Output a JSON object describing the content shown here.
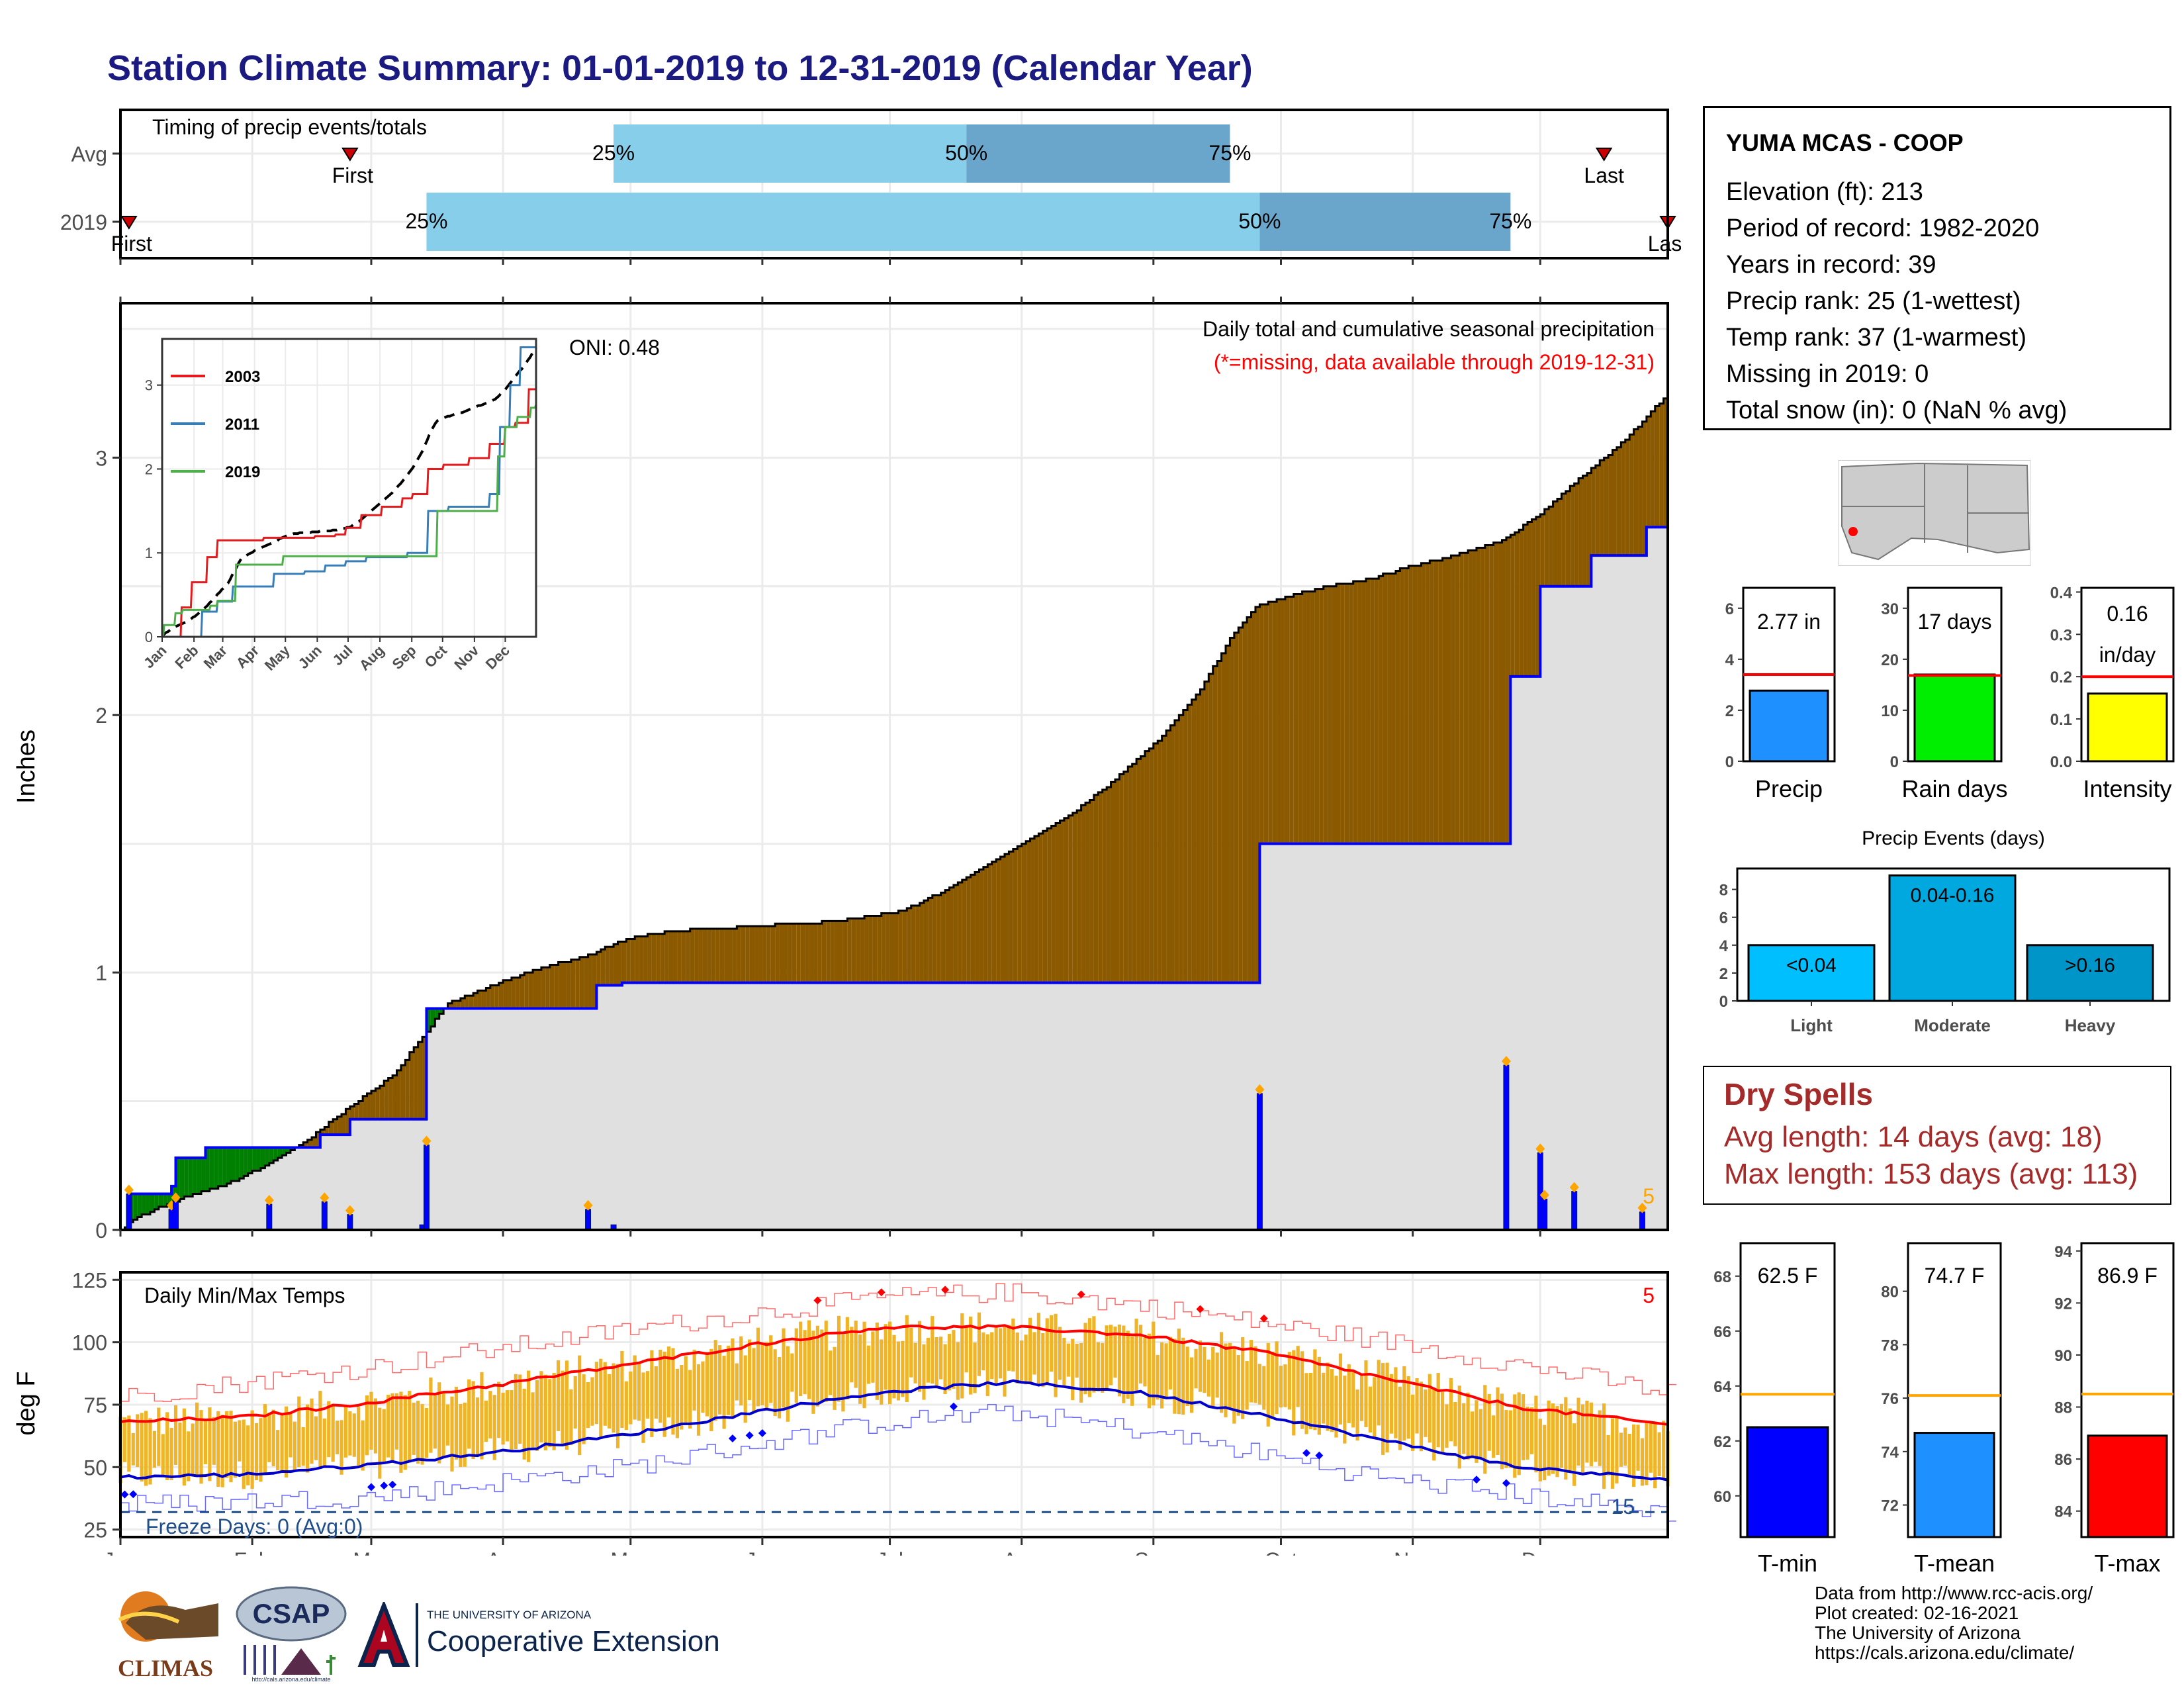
{
  "title": "Station Climate Summary: 01-01-2019 to 12-31-2019 (Calendar Year)",
  "colors": {
    "title": "#1a1a80",
    "fill_brown": "#8B5A00",
    "fill_green": "#008000",
    "fill_gray": "#e0e0e0",
    "line_blue": "#0000ff",
    "bar_light": "#87ceeb",
    "bar_dark": "#6aa6cc",
    "marker_red": "#cc0000",
    "orange": "#ffa500",
    "temp_bar": "#f0b428",
    "tmax_line": "#ff0000",
    "tmin_line": "#0000cc"
  },
  "timing": {
    "title": "Timing of precip events/totals",
    "rows": [
      {
        "label": "Avg",
        "first_doy": 55,
        "p25_doy": 117,
        "p50_doy": 200,
        "p75_doy": 262,
        "last_doy": 350,
        "first_label": "First",
        "last_label": "Last",
        "p25_label": "25%",
        "p50_label": "50%",
        "p75_label": "75%"
      },
      {
        "label": "2019",
        "first_doy": 3,
        "p25_doy": 73,
        "p50_doy": 269,
        "p75_doy": 328,
        "last_doy": 365,
        "first_label": "First",
        "last_label": "Last",
        "p25_label": "25%",
        "p50_label": "50%",
        "p75_label": "75%"
      }
    ]
  },
  "precip_panel": {
    "oni": "ONI: 0.48",
    "title": "Daily total and cumulative seasonal precipitation",
    "subtitle": "(*=missing, data available through 2019-12-31)",
    "ylabel": "Inches",
    "corner_count": "5",
    "yticks": [
      "0",
      "1",
      "2",
      "3"
    ]
  },
  "inset": {
    "xticks": [
      "Jan",
      "Feb",
      "Mar",
      "Apr",
      "May",
      "Jun",
      "Jul",
      "Aug",
      "Sep",
      "Oct",
      "Nov",
      "Dec"
    ],
    "yticks": [
      "0",
      "1",
      "2",
      "3"
    ],
    "legend": [
      {
        "name": "2003",
        "color": "#e41a1c"
      },
      {
        "name": "2011",
        "color": "#377eb8"
      },
      {
        "name": "2019",
        "color": "#4daf4a"
      }
    ]
  },
  "temp_panel": {
    "title": "Daily Min/Max Temps",
    "ylabel": "deg F",
    "freeze": "Freeze Days: 0 (Avg:0)",
    "corner_max_count": "5",
    "corner_min_count": "15",
    "yticks": [
      "25",
      "50",
      "75",
      "100",
      "125"
    ]
  },
  "months": [
    "Jan",
    "Feb",
    "Mar",
    "Apr",
    "May",
    "Jun",
    "Jul",
    "Aug",
    "Sep",
    "Oct",
    "Nov",
    "Dec"
  ],
  "info": {
    "station": "YUMA MCAS - COOP",
    "lines": [
      "Elevation (ft): 213",
      "Period of record: 1982-2020",
      "Years in record: 39",
      "Precip rank: 25 (1-wettest)",
      "Temp rank: 37 (1-warmest)",
      "Missing in 2019: 0",
      "Total snow (in): 0 (NaN % avg)"
    ]
  },
  "summary_bars": [
    {
      "label": "Precip",
      "value_text": "2.77 in",
      "yticks": [
        "0",
        "2",
        "4",
        "6"
      ],
      "color": "#1e90ff",
      "ref_color": "#ff0000"
    },
    {
      "label": "Rain days",
      "value_text": "17 days",
      "yticks": [
        "0",
        "10",
        "20",
        "30"
      ],
      "color": "#00ee00",
      "ref_color": "#ff0000"
    },
    {
      "label": "Intensity",
      "value_text": "0.16",
      "value_text2": "in/day",
      "yticks": [
        "0.0",
        "0.1",
        "0.2",
        "0.3",
        "0.4"
      ],
      "color": "#ffff00",
      "ref_color": "#ff0000"
    }
  ],
  "precip_events": {
    "title": "Precip Events (days)",
    "yticks": [
      "0",
      "2",
      "4",
      "6",
      "8"
    ],
    "bars": [
      {
        "category": "Light",
        "label": "<0.04",
        "color": "#00bfff"
      },
      {
        "category": "Moderate",
        "label": "0.04-0.16",
        "color": "#00a8e0"
      },
      {
        "category": "Heavy",
        "label": ">0.16",
        "color": "#0095c8"
      }
    ]
  },
  "dry_spells": {
    "title": "Dry Spells",
    "avg": "Avg length: 14 days (avg: 18)",
    "max": "Max length: 153 days (avg: 113)"
  },
  "temp_bars": [
    {
      "label": "T-min",
      "value_text": "62.5 F",
      "yticks": [
        "60",
        "62",
        "64",
        "66",
        "68"
      ],
      "color": "#0000ff",
      "ref_color": "#ffa500"
    },
    {
      "label": "T-mean",
      "value_text": "74.7 F",
      "yticks": [
        "72",
        "74",
        "76",
        "78",
        "80"
      ],
      "color": "#1e90ff",
      "ref_color": "#ffa500"
    },
    {
      "label": "T-max",
      "value_text": "86.9 F",
      "yticks": [
        "84",
        "86",
        "88",
        "90",
        "92",
        "94"
      ],
      "color": "#ff0000",
      "ref_color": "#ffa500"
    }
  ],
  "credits": [
    "Data from http://www.rcc-acis.org/",
    "Plot created: 02-16-2021",
    "The University of Arizona",
    "https://cals.arizona.edu/climate/"
  ],
  "logos": {
    "climas": "CLIMAS",
    "csap": "CSAP",
    "csap_url": "http://cals.arizona.edu/climate",
    "ua_small": "THE UNIVERSITY OF ARIZONA",
    "ua_ext": "Cooperative Extension",
    "ua_letter": "A"
  },
  "chart_data": [
    {
      "type": "bar",
      "name": "timing",
      "categories": [
        "Avg",
        "2019"
      ],
      "percentile_doy": {
        "Avg": {
          "first": 55,
          "p25": 117,
          "p50": 200,
          "p75": 262,
          "last": 350
        },
        "2019": {
          "first": 3,
          "p25": 73,
          "p50": 269,
          "p75": 328,
          "last": 365
        }
      }
    },
    {
      "type": "area",
      "name": "cumulative_precip",
      "ylabel": "Inches",
      "ylim": [
        0,
        3.6
      ],
      "normal_cumulative": [
        [
          1,
          0
        ],
        [
          5,
          0.05
        ],
        [
          15,
          0.12
        ],
        [
          25,
          0.17
        ],
        [
          35,
          0.25
        ],
        [
          45,
          0.35
        ],
        [
          55,
          0.48
        ],
        [
          65,
          0.6
        ],
        [
          72,
          0.75
        ],
        [
          78,
          0.88
        ],
        [
          90,
          0.96
        ],
        [
          100,
          1.02
        ],
        [
          110,
          1.06
        ],
        [
          120,
          1.13
        ],
        [
          130,
          1.16
        ],
        [
          150,
          1.18
        ],
        [
          170,
          1.2
        ],
        [
          185,
          1.24
        ],
        [
          195,
          1.32
        ],
        [
          205,
          1.42
        ],
        [
          215,
          1.52
        ],
        [
          225,
          1.62
        ],
        [
          235,
          1.75
        ],
        [
          245,
          1.9
        ],
        [
          255,
          2.1
        ],
        [
          262,
          2.3
        ],
        [
          268,
          2.42
        ],
        [
          275,
          2.46
        ],
        [
          285,
          2.5
        ],
        [
          295,
          2.53
        ],
        [
          305,
          2.58
        ],
        [
          315,
          2.62
        ],
        [
          325,
          2.67
        ],
        [
          335,
          2.78
        ],
        [
          345,
          2.93
        ],
        [
          355,
          3.07
        ],
        [
          365,
          3.25
        ]
      ],
      "observed_cumulative": [
        [
          1,
          0
        ],
        [
          3,
          0.14
        ],
        [
          13,
          0.17
        ],
        [
          14,
          0.28
        ],
        [
          21,
          0.32
        ],
        [
          48,
          0.37
        ],
        [
          55,
          0.43
        ],
        [
          73,
          0.86
        ],
        [
          113,
          0.95
        ],
        [
          119,
          0.96
        ],
        [
          269,
          1.5
        ],
        [
          328,
          2.15
        ],
        [
          335,
          2.5
        ],
        [
          347,
          2.62
        ],
        [
          360,
          2.73
        ],
        [
          365,
          2.77
        ]
      ],
      "daily_precip": [
        [
          3,
          0.14
        ],
        [
          13,
          0.08
        ],
        [
          14,
          0.11
        ],
        [
          36,
          0.1
        ],
        [
          49,
          0.11
        ],
        [
          55,
          0.06
        ],
        [
          72,
          0.02
        ],
        [
          73,
          0.33
        ],
        [
          111,
          0.08
        ],
        [
          117,
          0.02
        ],
        [
          269,
          0.53
        ],
        [
          327,
          0.64
        ],
        [
          335,
          0.3
        ],
        [
          336,
          0.12
        ],
        [
          343,
          0.15
        ],
        [
          359,
          0.07
        ]
      ]
    },
    {
      "type": "line",
      "name": "inset_cumulative_precip",
      "series": [
        {
          "name": "2003",
          "points": [
            [
              1,
              0
            ],
            [
              20,
              0.35
            ],
            [
              30,
              0.65
            ],
            [
              45,
              0.95
            ],
            [
              55,
              1.15
            ],
            [
              100,
              1.18
            ],
            [
              150,
              1.2
            ],
            [
              170,
              1.22
            ],
            [
              180,
              1.3
            ],
            [
              195,
              1.45
            ],
            [
              215,
              1.55
            ],
            [
              235,
              1.65
            ],
            [
              245,
              1.7
            ],
            [
              260,
              2.0
            ],
            [
              275,
              2.05
            ],
            [
              300,
              2.13
            ],
            [
              320,
              2.3
            ],
            [
              335,
              2.5
            ],
            [
              345,
              2.55
            ],
            [
              358,
              2.95
            ],
            [
              365,
              2.95
            ]
          ]
        },
        {
          "name": "2011",
          "points": [
            [
              1,
              0
            ],
            [
              40,
              0.3
            ],
            [
              55,
              0.42
            ],
            [
              70,
              0.6
            ],
            [
              110,
              0.75
            ],
            [
              140,
              0.78
            ],
            [
              160,
              0.85
            ],
            [
              180,
              0.9
            ],
            [
              200,
              0.95
            ],
            [
              240,
              1.0
            ],
            [
              260,
              1.5
            ],
            [
              280,
              1.55
            ],
            [
              300,
              1.55
            ],
            [
              320,
              1.7
            ],
            [
              330,
              2.5
            ],
            [
              340,
              3.0
            ],
            [
              350,
              3.45
            ],
            [
              365,
              3.45
            ]
          ]
        },
        {
          "name": "2019",
          "points": [
            [
              1,
              0
            ],
            [
              3,
              0.14
            ],
            [
              14,
              0.28
            ],
            [
              21,
              0.32
            ],
            [
              48,
              0.37
            ],
            [
              55,
              0.43
            ],
            [
              73,
              0.86
            ],
            [
              119,
              0.96
            ],
            [
              269,
              1.5
            ],
            [
              328,
              2.15
            ],
            [
              335,
              2.5
            ],
            [
              347,
              2.62
            ],
            [
              360,
              2.73
            ],
            [
              365,
              2.77
            ]
          ]
        }
      ]
    },
    {
      "type": "line",
      "name": "daily_temps",
      "ylabel": "deg F",
      "ylim": [
        22,
        128
      ],
      "normal_tmax": [
        [
          1,
          68
        ],
        [
          30,
          70
        ],
        [
          60,
          76
        ],
        [
          90,
          83
        ],
        [
          120,
          91
        ],
        [
          150,
          99
        ],
        [
          180,
          106
        ],
        [
          210,
          106
        ],
        [
          240,
          103
        ],
        [
          270,
          96
        ],
        [
          300,
          85
        ],
        [
          330,
          74
        ],
        [
          365,
          67
        ]
      ],
      "normal_tmin": [
        [
          1,
          46
        ],
        [
          30,
          47
        ],
        [
          60,
          51
        ],
        [
          90,
          56
        ],
        [
          120,
          63
        ],
        [
          150,
          72
        ],
        [
          180,
          80
        ],
        [
          210,
          84
        ],
        [
          240,
          80
        ],
        [
          270,
          71
        ],
        [
          300,
          60
        ],
        [
          330,
          50
        ],
        [
          365,
          45
        ]
      ],
      "record_max_approx": [
        [
          1,
          78
        ],
        [
          60,
          90
        ],
        [
          120,
          105
        ],
        [
          180,
          118
        ],
        [
          210,
          120
        ],
        [
          240,
          115
        ],
        [
          300,
          100
        ],
        [
          365,
          80
        ]
      ],
      "record_min_approx": [
        [
          1,
          35
        ],
        [
          60,
          38
        ],
        [
          120,
          50
        ],
        [
          180,
          68
        ],
        [
          210,
          72
        ],
        [
          240,
          65
        ],
        [
          300,
          45
        ],
        [
          365,
          32
        ]
      ],
      "freeze_line": 32
    },
    {
      "type": "bar",
      "name": "annual_summary",
      "categories": [
        "Precip",
        "Rain days",
        "Intensity"
      ],
      "values": [
        2.77,
        17,
        0.16
      ],
      "avg": [
        3.4,
        16.8,
        0.2
      ],
      "ylims": [
        [
          0,
          6.8
        ],
        [
          0,
          34
        ],
        [
          0,
          0.41
        ]
      ]
    },
    {
      "type": "bar",
      "name": "precip_events_days",
      "categories": [
        "Light",
        "Moderate",
        "Heavy"
      ],
      "values": [
        4,
        9,
        4
      ],
      "ylim": [
        0,
        9.5
      ]
    },
    {
      "type": "bar",
      "name": "temperature_summary",
      "categories": [
        "T-min",
        "T-mean",
        "T-max"
      ],
      "values": [
        62.5,
        74.7,
        86.9
      ],
      "avg": [
        63.7,
        76.1,
        88.5
      ],
      "ylims": [
        [
          58.5,
          69.2
        ],
        [
          70.8,
          81.8
        ],
        [
          83,
          94.3
        ]
      ]
    }
  ]
}
